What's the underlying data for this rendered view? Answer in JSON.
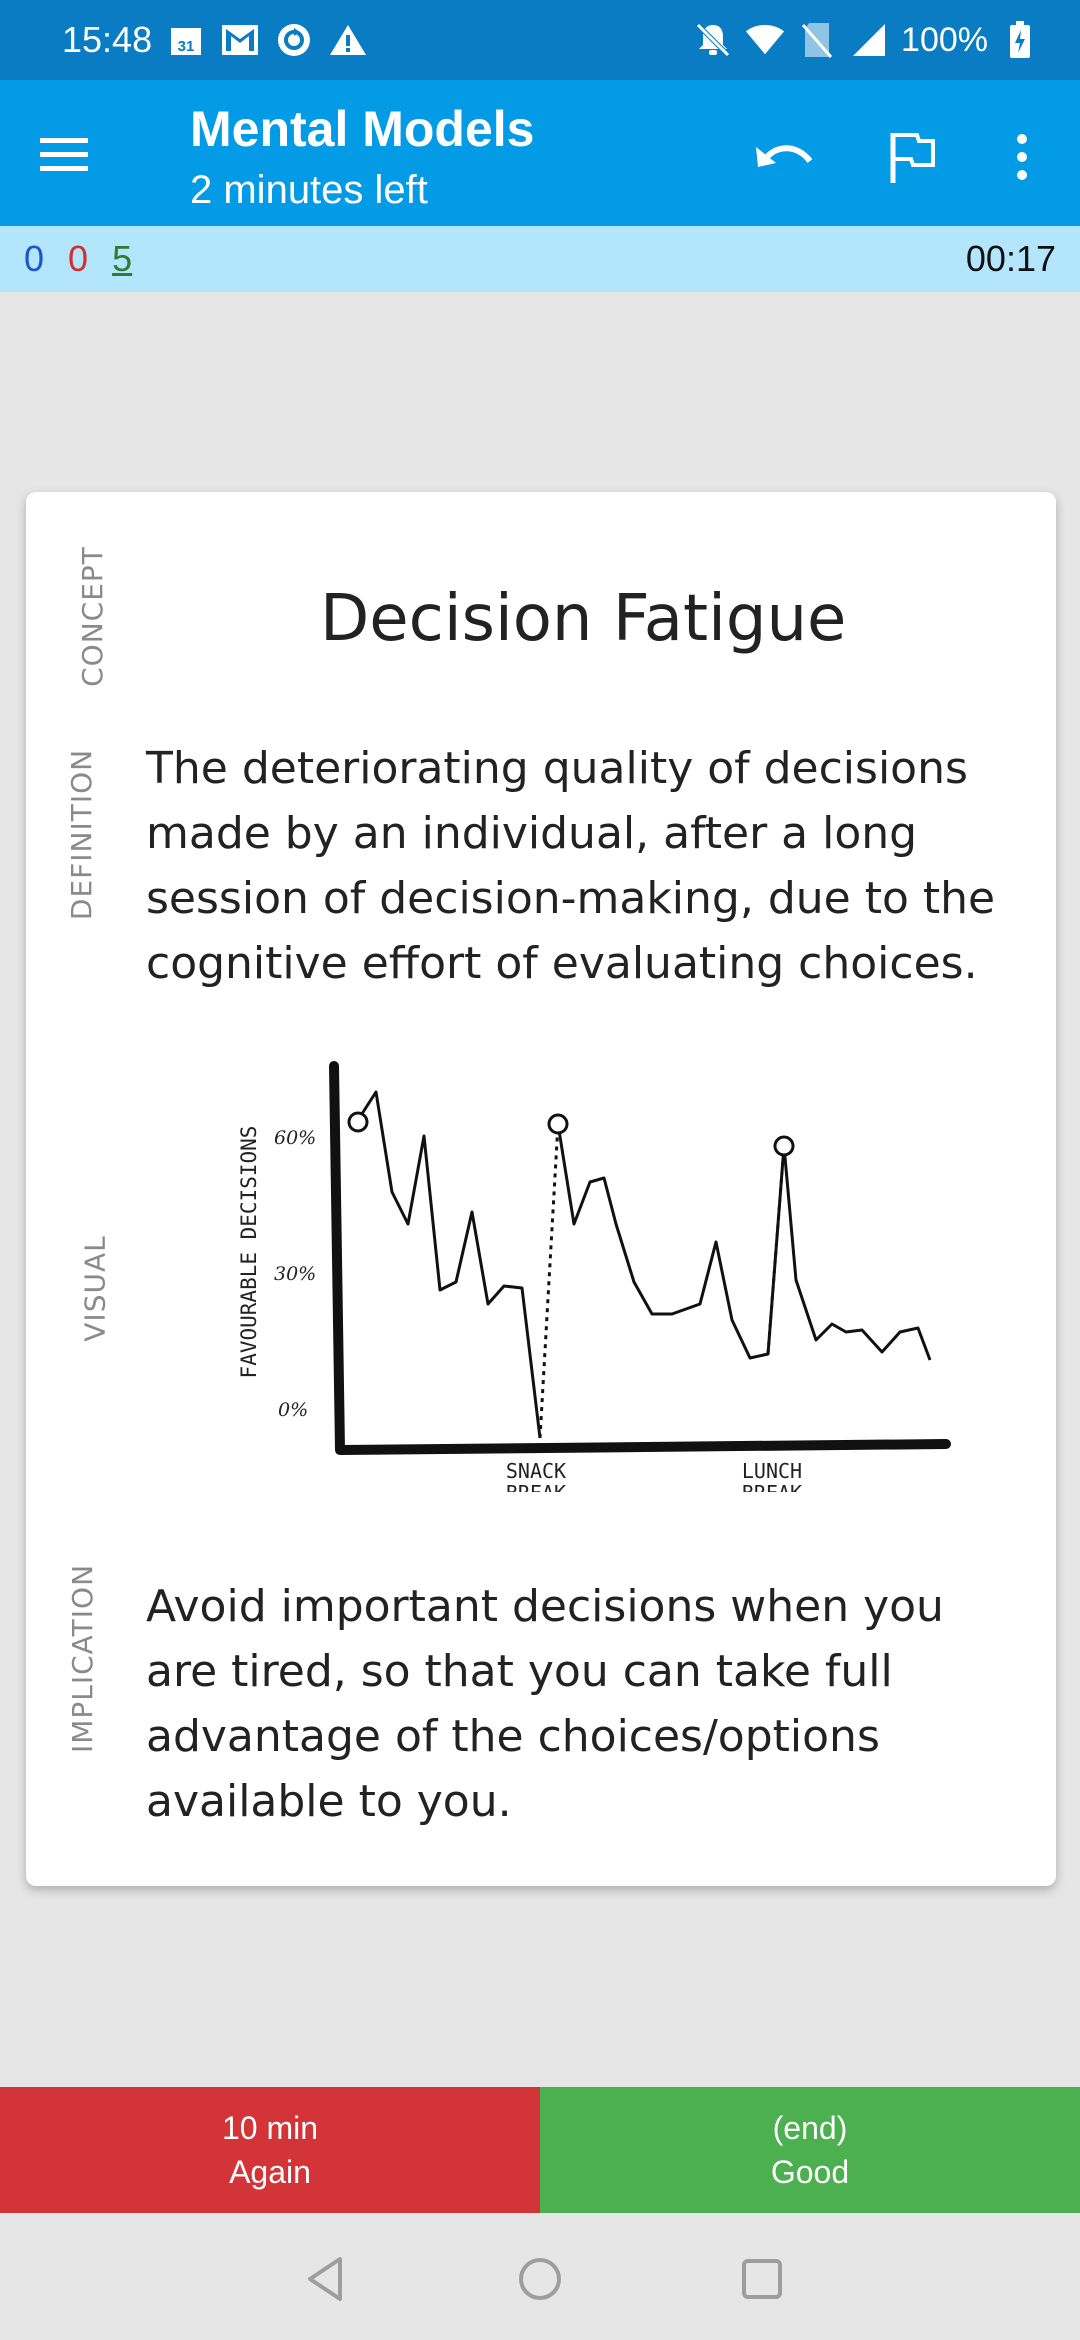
{
  "status_bar": {
    "time": "15:48",
    "battery": "100%",
    "left_icons": [
      "calendar-icon",
      "gmail-icon",
      "sync-icon",
      "warning-icon"
    ],
    "calendar_day": "31",
    "right_icons": [
      "mute-icon",
      "wifi-icon",
      "no-sim-icon",
      "signal-icon",
      "battery-charging-icon"
    ]
  },
  "app_bar": {
    "title": "Mental Models",
    "subtitle": "2 minutes left",
    "icons": [
      "menu-icon",
      "undo-icon",
      "flag-icon",
      "more-vert-icon"
    ]
  },
  "counts": {
    "new": "0",
    "learning": "0",
    "review": "5",
    "timer": "00:17"
  },
  "card": {
    "labels": {
      "concept": "CONCEPT",
      "definition": "DEFINITION",
      "visual": "VISUAL",
      "implication": "IMPLICATION"
    },
    "concept": "Decision Fatigue",
    "definition": "The deteriorating quality of decisions made by an individual, after a long session of decision-making, due to the cognitive effort of evaluating choices.",
    "visual": {
      "ylabel": "FAVOURABLE DECISIONS",
      "ticks": [
        "60%",
        "30%",
        "0%"
      ],
      "annotations": {
        "snack": [
          "SNACK",
          "BREAK"
        ],
        "lunch": [
          "LUNCH",
          "BREAK"
        ]
      }
    },
    "implication": "Avoid important decisions when you are tired, so that you can take full advantage of the choices/options available to you."
  },
  "answers": {
    "again": {
      "interval": "10 min",
      "label": "Again",
      "color": "#d23438"
    },
    "good": {
      "interval": "(end)",
      "label": "Good",
      "color": "#4caf50"
    }
  },
  "nav_bar": {
    "icons": [
      "back-icon",
      "home-icon",
      "recents-icon"
    ]
  }
}
